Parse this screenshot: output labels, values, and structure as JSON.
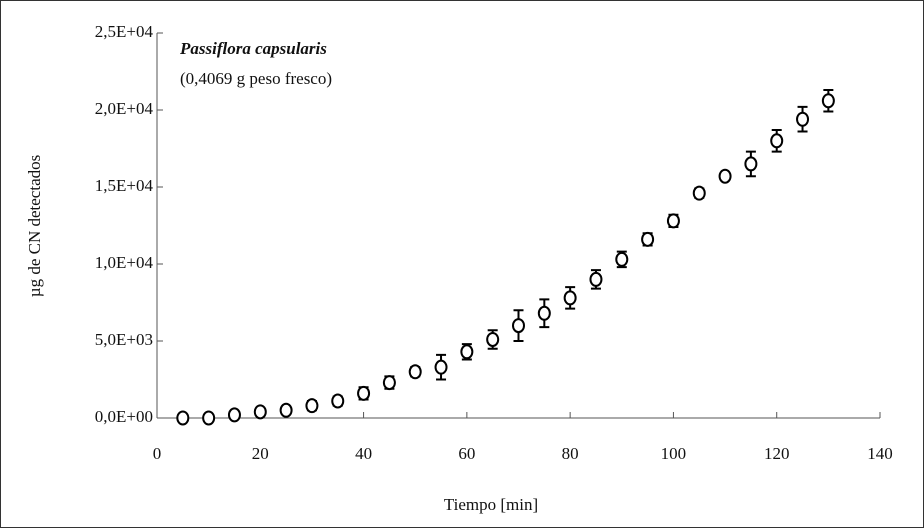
{
  "chart_data": {
    "type": "scatter",
    "annotations": [
      "Passiflora capsularis",
      "(0,4069 g peso fresco)"
    ],
    "x_label": "Tiempo [min]",
    "y_label": "µg de CN detectados",
    "x": [
      5,
      10,
      15,
      20,
      25,
      30,
      35,
      40,
      45,
      50,
      55,
      60,
      65,
      70,
      75,
      80,
      85,
      90,
      95,
      100,
      105,
      110,
      115,
      120,
      125,
      130
    ],
    "series": [
      {
        "color": "#000000",
        "values": [
          0,
          0,
          200,
          400,
          500,
          800,
          1100,
          1600,
          2300,
          3000,
          3300,
          4300,
          5100,
          6000,
          6800,
          7800,
          9000,
          10300,
          11600,
          12800,
          14600,
          15700,
          16500,
          18000,
          19400,
          20600
        ],
        "errors": [
          100,
          100,
          100,
          100,
          100,
          300,
          300,
          400,
          400,
          300,
          800,
          500,
          600,
          1000,
          900,
          700,
          600,
          500,
          400,
          400,
          300,
          200,
          800,
          700,
          800,
          700
        ]
      }
    ],
    "xlim": [
      0,
      140
    ],
    "xticks": [
      0,
      20,
      40,
      60,
      80,
      100,
      120,
      140
    ],
    "ylim": [
      0,
      25000
    ],
    "yticks": [
      {
        "value": 0,
        "label": "0,0E+00"
      },
      {
        "value": 5000,
        "label": "5,0E+03"
      },
      {
        "value": 10000,
        "label": "1,0E+04"
      },
      {
        "value": 15000,
        "label": "1,5E+04"
      },
      {
        "value": 20000,
        "label": "2,0E+04"
      },
      {
        "value": 25000,
        "label": "2,5E+04"
      }
    ]
  }
}
